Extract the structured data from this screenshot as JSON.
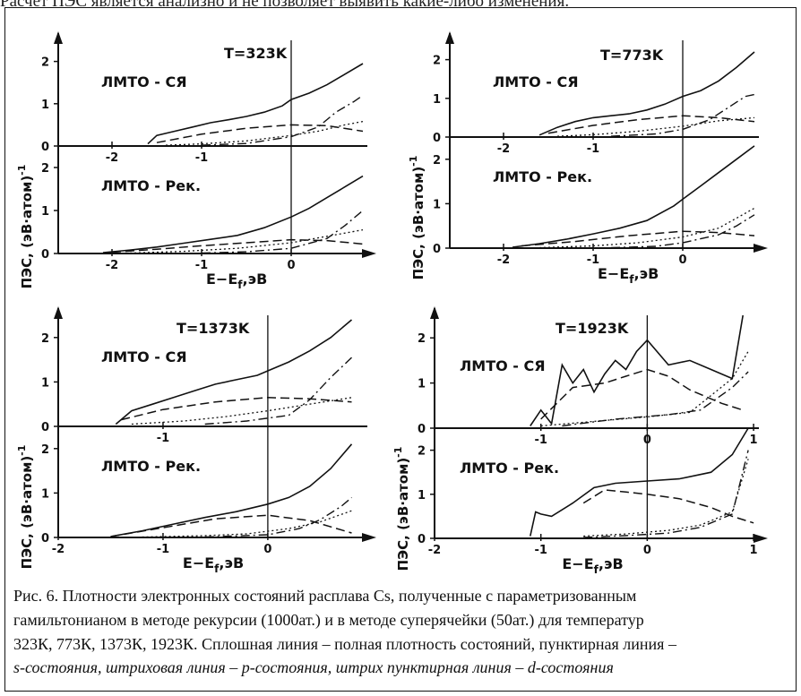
{
  "page": {
    "top_line": "Расчёт ПЭС является анализно и не позволяет выявить какие-либо изменения."
  },
  "chart_data": [
    {
      "type": "line",
      "title": "T=323K",
      "panels": [
        {
          "label": "ЛМТО - СЯ",
          "ylim": [
            0,
            2.5
          ],
          "yticks": [
            "0",
            "1",
            "2"
          ],
          "xticks": [
            "-2",
            "-1"
          ],
          "series": [
            {
              "style": "solid",
              "x": [
                -1.6,
                -1.5,
                -1.3,
                -1.1,
                -0.9,
                -0.7,
                -0.5,
                -0.3,
                -0.1,
                0.0,
                0.2,
                0.4,
                0.6,
                0.8
              ],
              "y": [
                0.05,
                0.25,
                0.35,
                0.45,
                0.55,
                0.62,
                0.7,
                0.8,
                0.95,
                1.1,
                1.25,
                1.45,
                1.7,
                1.95
              ]
            },
            {
              "style": "dotted",
              "x": [
                -1.4,
                -1.0,
                -0.5,
                0.0,
                0.3,
                0.6,
                0.8
              ],
              "y": [
                0.02,
                0.05,
                0.12,
                0.25,
                0.35,
                0.5,
                0.58
              ]
            },
            {
              "style": "dashed",
              "x": [
                -1.5,
                -1.0,
                -0.5,
                0.0,
                0.4,
                0.8
              ],
              "y": [
                0.08,
                0.28,
                0.42,
                0.5,
                0.48,
                0.35
              ]
            },
            {
              "style": "dashdot",
              "x": [
                -1.0,
                -0.5,
                0.0,
                0.3,
                0.5,
                0.7,
                0.8
              ],
              "y": [
                0.02,
                0.06,
                0.22,
                0.45,
                0.8,
                1.05,
                1.2
              ]
            }
          ]
        },
        {
          "label": "ЛМТО - Рек.",
          "ylim": [
            0,
            2.5
          ],
          "yticks": [
            "0",
            "1",
            "2"
          ],
          "xticks": [
            "-2",
            "-1",
            "0"
          ],
          "xlabel": "E−E",
          "xlabel_sub": "f",
          "xlabel_unit": ",эВ",
          "series": [
            {
              "style": "solid",
              "x": [
                -2.1,
                -1.8,
                -1.5,
                -1.2,
                -0.9,
                -0.6,
                -0.3,
                0.0,
                0.2,
                0.4,
                0.6,
                0.8
              ],
              "y": [
                0.02,
                0.08,
                0.15,
                0.24,
                0.33,
                0.42,
                0.6,
                0.85,
                1.05,
                1.3,
                1.55,
                1.8
              ]
            },
            {
              "style": "dotted",
              "x": [
                -1.8,
                -1.2,
                -0.6,
                0.0,
                0.4,
                0.8
              ],
              "y": [
                0.01,
                0.05,
                0.12,
                0.25,
                0.4,
                0.55
              ]
            },
            {
              "style": "dashed",
              "x": [
                -2.0,
                -1.5,
                -1.0,
                -0.5,
                0.0,
                0.4,
                0.8
              ],
              "y": [
                0.03,
                0.1,
                0.18,
                0.25,
                0.32,
                0.3,
                0.22
              ]
            },
            {
              "style": "dashdot",
              "x": [
                -1.0,
                -0.5,
                0.0,
                0.4,
                0.6,
                0.8
              ],
              "y": [
                0.01,
                0.04,
                0.12,
                0.35,
                0.65,
                1.0
              ]
            }
          ]
        }
      ]
    },
    {
      "type": "line",
      "title": "T=773K",
      "panels": [
        {
          "label": "ЛМТО - СЯ",
          "ylim": [
            0,
            2.5
          ],
          "yticks": [
            "0",
            "1",
            "2"
          ],
          "xticks": [
            "-2",
            "-1"
          ],
          "series": [
            {
              "style": "solid",
              "x": [
                -1.6,
                -1.4,
                -1.2,
                -1.0,
                -0.8,
                -0.6,
                -0.4,
                -0.2,
                0.0,
                0.2,
                0.4,
                0.6,
                0.8
              ],
              "y": [
                0.05,
                0.25,
                0.4,
                0.5,
                0.55,
                0.6,
                0.7,
                0.85,
                1.05,
                1.2,
                1.45,
                1.8,
                2.2
              ]
            },
            {
              "style": "dotted",
              "x": [
                -1.4,
                -1.0,
                -0.5,
                0.0,
                0.4,
                0.8
              ],
              "y": [
                0.02,
                0.06,
                0.15,
                0.28,
                0.42,
                0.5
              ]
            },
            {
              "style": "dashed",
              "x": [
                -1.5,
                -1.0,
                -0.5,
                0.0,
                0.4,
                0.8
              ],
              "y": [
                0.1,
                0.3,
                0.45,
                0.55,
                0.5,
                0.4
              ]
            },
            {
              "style": "dashdot",
              "x": [
                -0.8,
                -0.3,
                0.0,
                0.3,
                0.5,
                0.7,
                0.8
              ],
              "y": [
                0.02,
                0.08,
                0.2,
                0.45,
                0.75,
                1.05,
                1.1
              ]
            }
          ]
        },
        {
          "label": "ЛМТО - Рек.",
          "ylim": [
            0,
            2.5
          ],
          "yticks": [
            "0",
            "1",
            "2"
          ],
          "xticks": [
            "-2",
            "-1",
            "0"
          ],
          "xlabel": "E−E",
          "xlabel_sub": "f",
          "xlabel_unit": ",эВ",
          "series": [
            {
              "style": "solid",
              "x": [
                -1.9,
                -1.6,
                -1.3,
                -1.0,
                -0.7,
                -0.4,
                -0.1,
                0.0,
                0.2,
                0.4,
                0.6,
                0.8
              ],
              "y": [
                0.02,
                0.1,
                0.2,
                0.32,
                0.45,
                0.62,
                0.95,
                1.1,
                1.4,
                1.7,
                2.0,
                2.3
              ]
            },
            {
              "style": "dotted",
              "x": [
                -1.6,
                -1.0,
                -0.5,
                0.0,
                0.4,
                0.8
              ],
              "y": [
                0.01,
                0.05,
                0.12,
                0.25,
                0.45,
                0.9
              ]
            },
            {
              "style": "dashed",
              "x": [
                -1.8,
                -1.2,
                -0.6,
                0.0,
                0.4,
                0.8
              ],
              "y": [
                0.05,
                0.15,
                0.28,
                0.38,
                0.35,
                0.28
              ]
            },
            {
              "style": "dashdot",
              "x": [
                -0.8,
                -0.3,
                0.0,
                0.4,
                0.6,
                0.8
              ],
              "y": [
                0.01,
                0.04,
                0.12,
                0.3,
                0.5,
                0.75
              ]
            }
          ]
        }
      ]
    },
    {
      "type": "line",
      "title": "T=1373K",
      "panels": [
        {
          "label": "ЛМТО - СЯ",
          "ylim": [
            0,
            2.5
          ],
          "yticks": [
            "0",
            "1",
            "2"
          ],
          "xticks": [
            "-1"
          ],
          "series": [
            {
              "style": "solid",
              "x": [
                -1.45,
                -1.3,
                -1.1,
                -0.9,
                -0.7,
                -0.5,
                -0.3,
                -0.1,
                0.0,
                0.2,
                0.4,
                0.6,
                0.8
              ],
              "y": [
                0.05,
                0.35,
                0.5,
                0.65,
                0.8,
                0.95,
                1.05,
                1.15,
                1.25,
                1.45,
                1.7,
                2.0,
                2.4
              ]
            },
            {
              "style": "dotted",
              "x": [
                -1.3,
                -0.8,
                -0.4,
                0.0,
                0.4,
                0.8
              ],
              "y": [
                0.05,
                0.12,
                0.22,
                0.35,
                0.5,
                0.65
              ]
            },
            {
              "style": "dashed",
              "x": [
                -1.4,
                -1.0,
                -0.5,
                0.0,
                0.4,
                0.8
              ],
              "y": [
                0.15,
                0.38,
                0.55,
                0.65,
                0.62,
                0.55
              ]
            },
            {
              "style": "dashdot",
              "x": [
                -0.6,
                -0.2,
                0.2,
                0.4,
                0.6,
                0.8
              ],
              "y": [
                0.05,
                0.12,
                0.25,
                0.6,
                1.1,
                1.55
              ]
            }
          ]
        },
        {
          "label": "ЛМТО - Рек.",
          "ylim": [
            0,
            2.5
          ],
          "yticks": [
            "0",
            "1",
            "2"
          ],
          "xticks": [
            "-2",
            "-1",
            "0"
          ],
          "xlabel": "E−E",
          "xlabel_sub": "f",
          "xlabel_unit": ",эВ",
          "series": [
            {
              "style": "solid",
              "x": [
                -1.5,
                -1.2,
                -0.9,
                -0.6,
                -0.3,
                0.0,
                0.2,
                0.4,
                0.6,
                0.8
              ],
              "y": [
                0.02,
                0.15,
                0.3,
                0.45,
                0.58,
                0.75,
                0.9,
                1.15,
                1.55,
                2.1
              ]
            },
            {
              "style": "dotted",
              "x": [
                -1.2,
                -0.6,
                -0.2,
                0.2,
                0.5,
                0.8
              ],
              "y": [
                0.01,
                0.04,
                0.08,
                0.2,
                0.35,
                0.6
              ]
            },
            {
              "style": "dashed",
              "x": [
                -1.5,
                -1.0,
                -0.5,
                0.0,
                0.4,
                0.8
              ],
              "y": [
                0.02,
                0.22,
                0.42,
                0.5,
                0.38,
                0.1
              ]
            },
            {
              "style": "dashdot",
              "x": [
                -0.6,
                0.0,
                0.3,
                0.5,
                0.7,
                0.8
              ],
              "y": [
                0.01,
                0.06,
                0.2,
                0.4,
                0.7,
                0.9
              ]
            }
          ]
        }
      ]
    },
    {
      "type": "line",
      "title": "T=1923K",
      "panels": [
        {
          "label": "ЛМТО - СЯ",
          "ylim": [
            0,
            2.5
          ],
          "yticks": [
            "0",
            "1",
            "2"
          ],
          "xticks": [
            "-1",
            "0",
            "1"
          ],
          "series": [
            {
              "style": "solid",
              "x": [
                -1.1,
                -1.0,
                -0.9,
                -0.8,
                -0.7,
                -0.6,
                -0.5,
                -0.4,
                -0.3,
                -0.2,
                -0.1,
                0.0,
                0.2,
                0.4,
                0.6,
                0.8,
                0.9
              ],
              "y": [
                0.05,
                0.4,
                0.1,
                1.4,
                1.0,
                1.3,
                0.8,
                1.2,
                1.5,
                1.3,
                1.7,
                1.95,
                1.4,
                1.5,
                1.3,
                1.1,
                2.5
              ]
            },
            {
              "style": "dotted",
              "x": [
                -1.0,
                -0.5,
                0.0,
                0.4,
                0.8,
                0.95
              ],
              "y": [
                0.05,
                0.15,
                0.25,
                0.35,
                1.1,
                1.7
              ]
            },
            {
              "style": "dashed",
              "x": [
                -1.0,
                -0.7,
                -0.4,
                -0.2,
                0.0,
                0.2,
                0.4,
                0.7,
                0.9
              ],
              "y": [
                0.2,
                0.9,
                1.0,
                1.15,
                1.3,
                1.15,
                0.85,
                0.55,
                0.4
              ]
            },
            {
              "style": "dashdot",
              "x": [
                -0.8,
                -0.3,
                0.2,
                0.5,
                0.8,
                0.95
              ],
              "y": [
                0.05,
                0.2,
                0.3,
                0.4,
                0.9,
                1.25
              ]
            }
          ]
        },
        {
          "label": "ЛМТО - Рек.",
          "ylim": [
            0,
            2.5
          ],
          "yticks": [
            "0",
            "1",
            "2"
          ],
          "xticks": [
            "-2",
            "-1",
            "0",
            "1"
          ],
          "xlabel": "E−E",
          "xlabel_sub": "f",
          "xlabel_unit": ",эВ",
          "series": [
            {
              "style": "solid",
              "x": [
                -1.1,
                -1.05,
                -1.0,
                -0.9,
                -0.7,
                -0.5,
                -0.3,
                0.0,
                0.3,
                0.6,
                0.8,
                0.95
              ],
              "y": [
                0.05,
                0.6,
                0.55,
                0.5,
                0.8,
                1.15,
                1.25,
                1.3,
                1.35,
                1.5,
                1.9,
                2.5
              ]
            },
            {
              "style": "dotted",
              "x": [
                -0.6,
                -0.2,
                0.2,
                0.5,
                0.8,
                0.95
              ],
              "y": [
                0.05,
                0.1,
                0.18,
                0.3,
                0.6,
                1.8
              ]
            },
            {
              "style": "dashed",
              "x": [
                -0.6,
                -0.4,
                -0.2,
                0.0,
                0.3,
                0.6,
                0.8,
                1.0
              ],
              "y": [
                0.8,
                1.1,
                1.05,
                1.0,
                0.9,
                0.7,
                0.5,
                0.35
              ]
            },
            {
              "style": "dashdot",
              "x": [
                -0.6,
                -0.2,
                0.2,
                0.5,
                0.8,
                0.95
              ],
              "y": [
                0.02,
                0.06,
                0.12,
                0.25,
                0.55,
                2.0
              ]
            }
          ]
        }
      ]
    }
  ],
  "y_axis_label": "ПЭС, (эВ·атом)",
  "y_axis_label_sup": "-1",
  "caption": {
    "line1": "Рис. 6. Плотности электронных состояний расплава Cs, полученные с параметризованным",
    "line2": "гамильтонианом в методе рекурсии (1000ат.) и в методе суперячейки (50ат.) для температур",
    "line3": "323К, 773К, 1373К, 1923К. Сплошная линия – полная плотность состояний, пунктирная линия –",
    "line4": "s-состояния, штриховая линия – p-состояния, штрих пунктирная линия – d-состояния"
  }
}
